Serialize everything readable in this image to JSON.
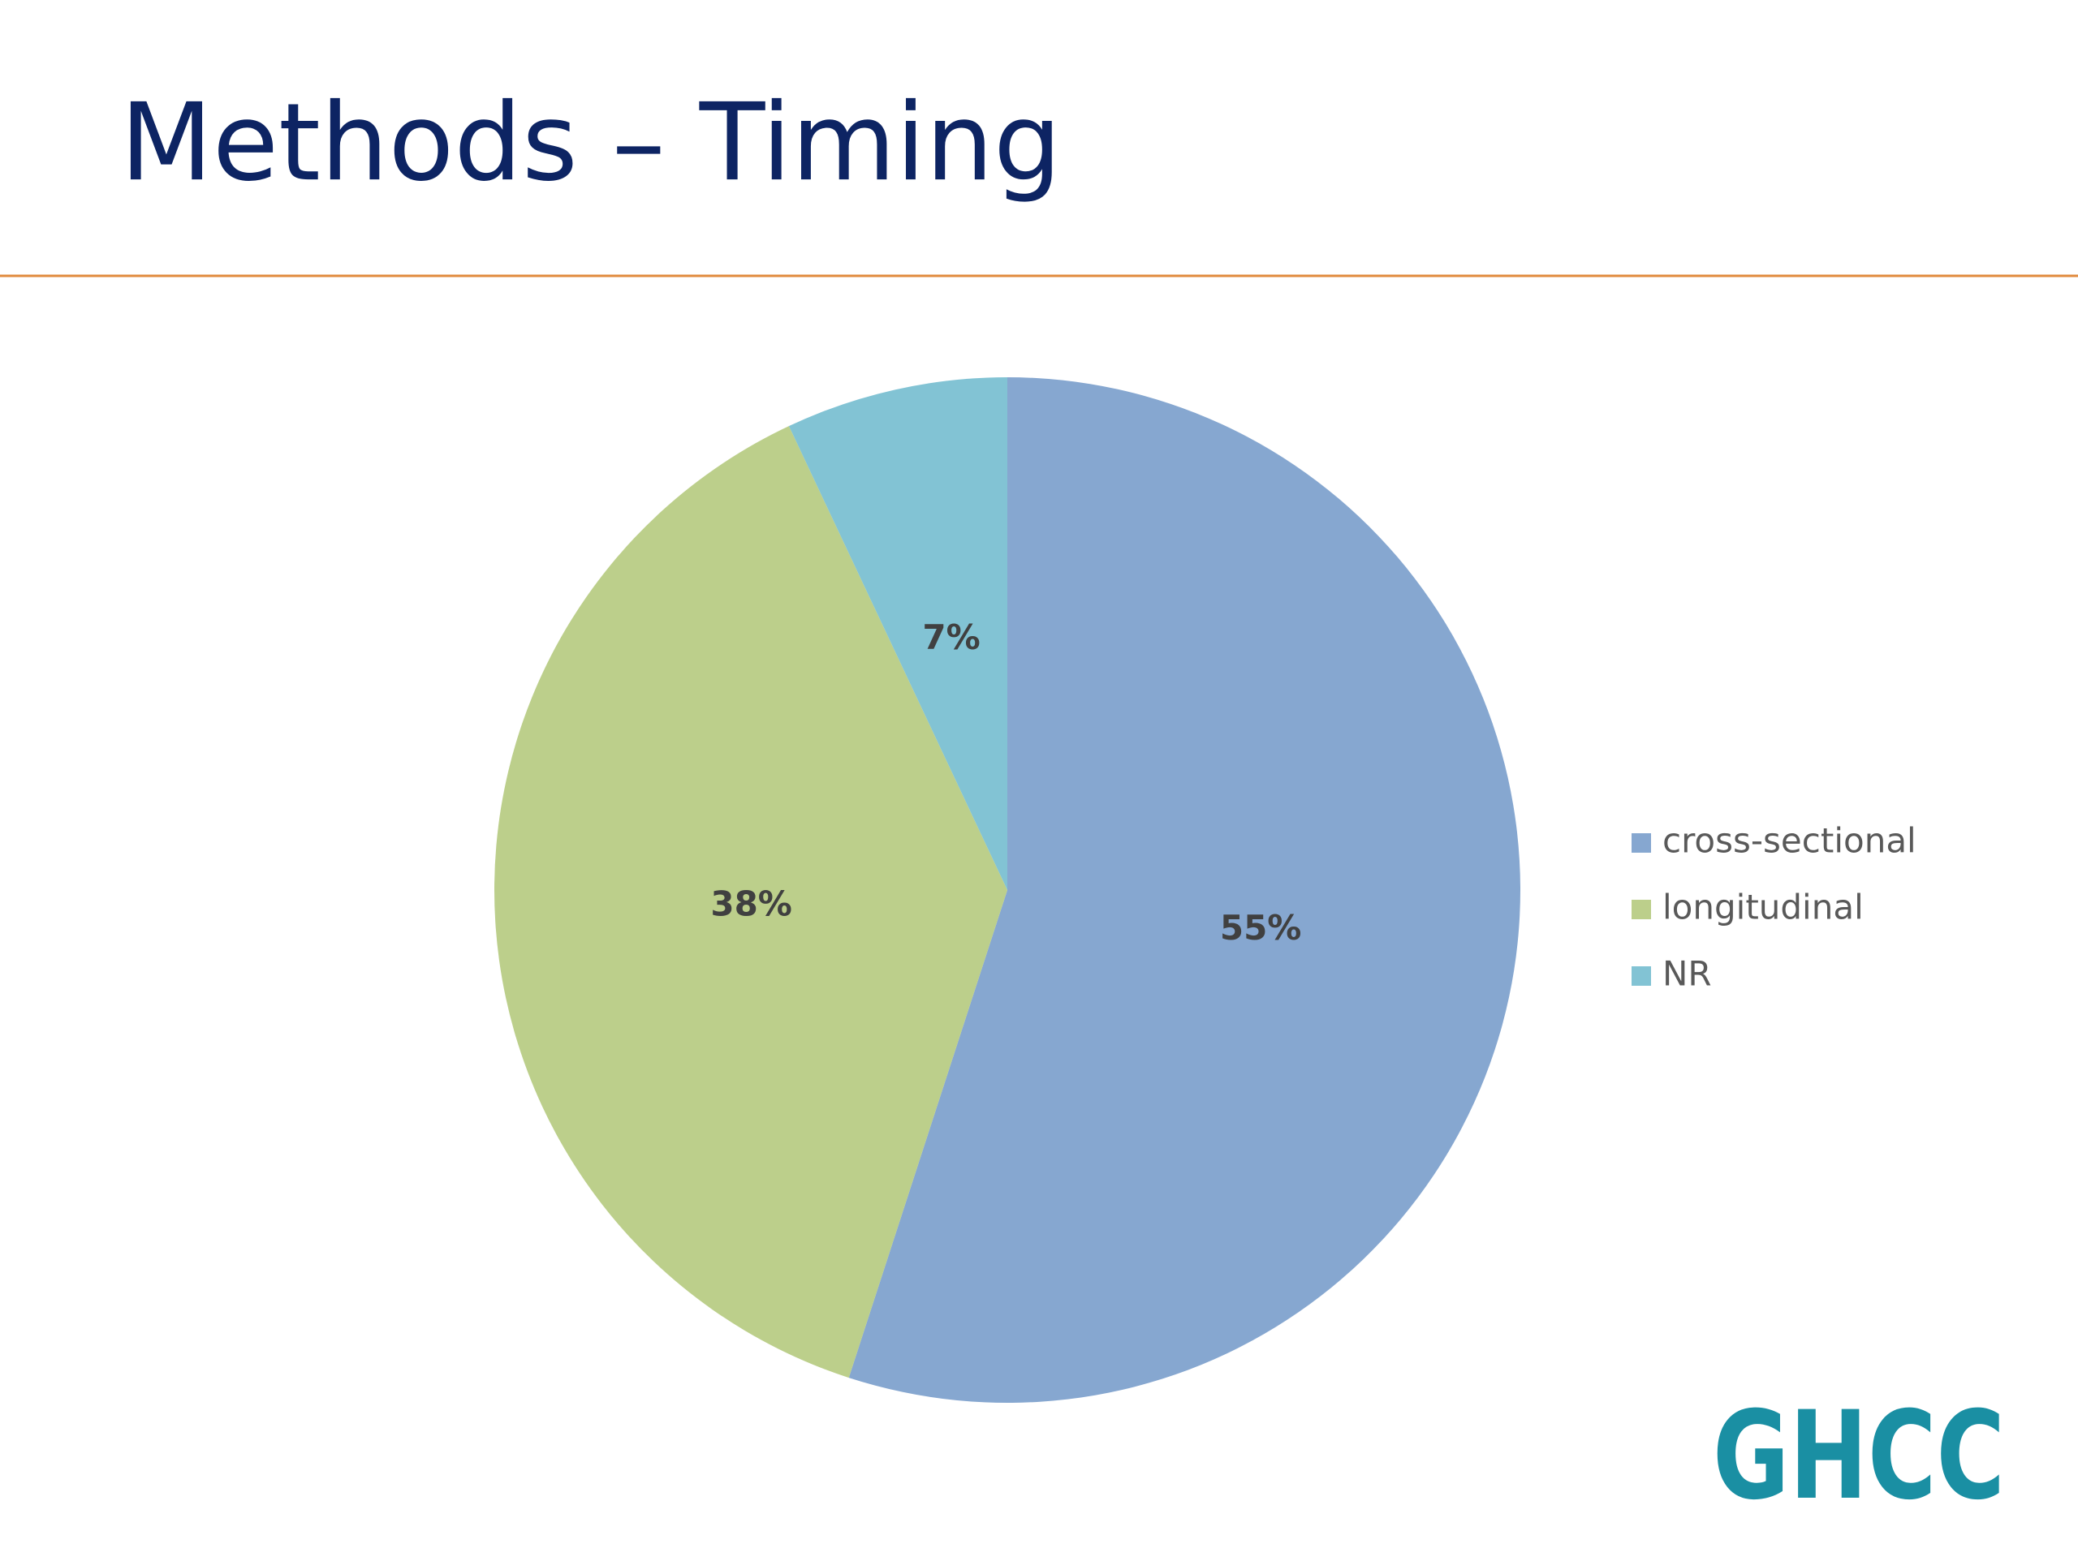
{
  "chart_data": {
    "type": "pie",
    "title": "Methods – Timing",
    "categories": [
      "cross-sectional",
      "longitudinal",
      "NR"
    ],
    "values": [
      55,
      38,
      7
    ],
    "value_labels": [
      "55%",
      "38%",
      "7%"
    ],
    "colors": [
      "#86a7d0",
      "#bccf8b",
      "#82c3d4"
    ],
    "legend": "right"
  },
  "logo": "GHCC"
}
